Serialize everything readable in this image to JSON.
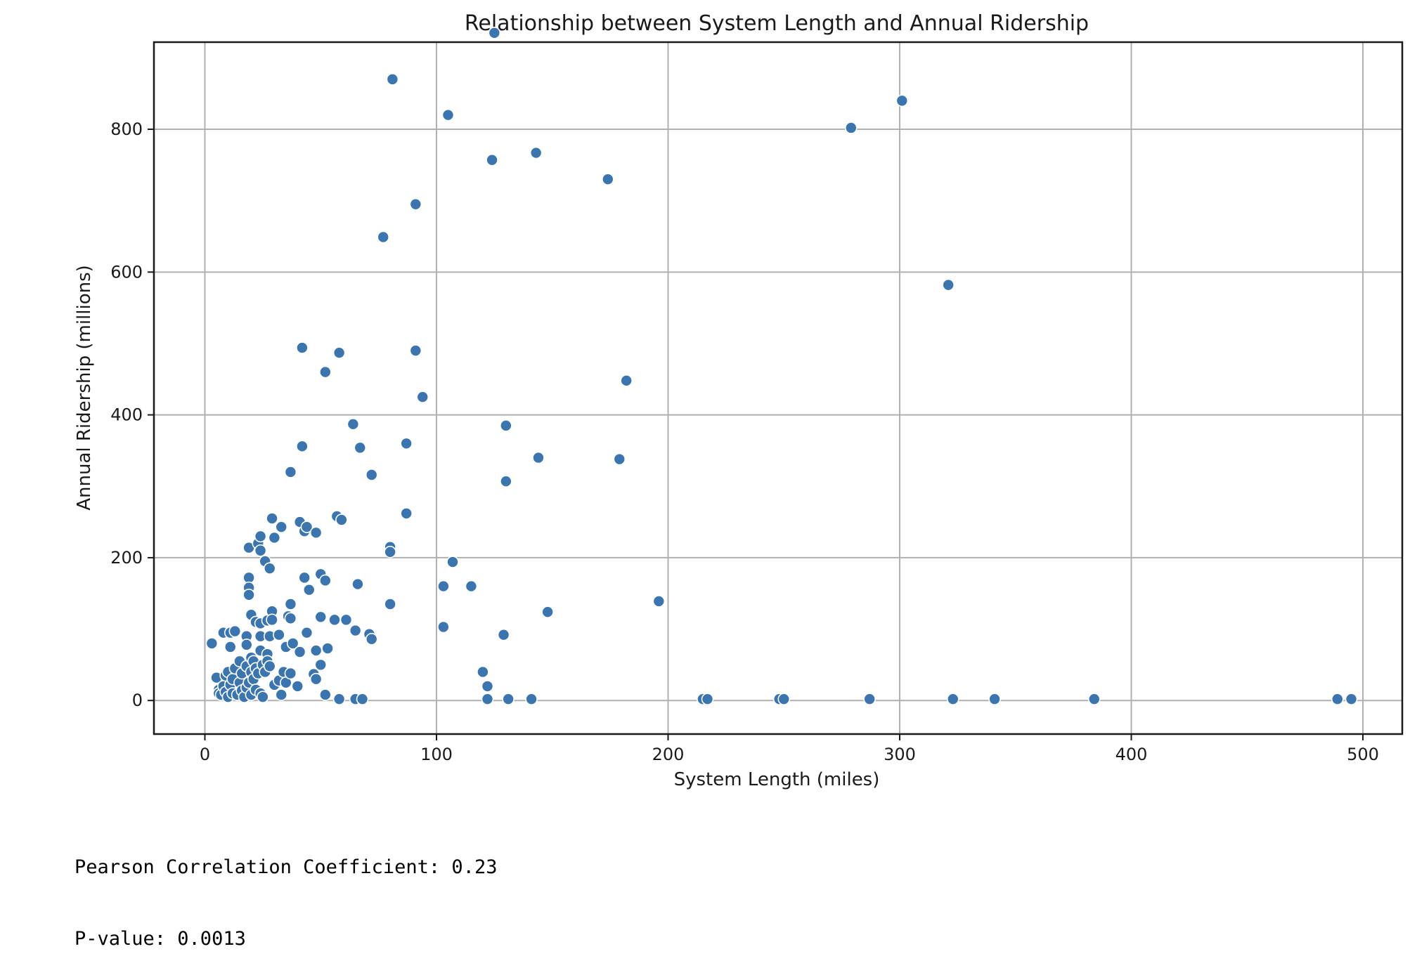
{
  "colors": {
    "point": "#3a75b0",
    "grid": "#b0b0b0",
    "axis": "#1a1a1a"
  },
  "chart_data": {
    "type": "scatter",
    "title": "Relationship between System Length and Annual Ridership",
    "xlabel": "System Length (miles)",
    "ylabel": "Annual Ridership (millions)",
    "xlim": [
      -22,
      517
    ],
    "ylim": [
      -47,
      922
    ],
    "xticks": [
      0,
      100,
      200,
      300,
      400,
      500
    ],
    "yticks": [
      0,
      200,
      400,
      600,
      800
    ],
    "grid": true,
    "legend": "none",
    "points": [
      [
        125,
        935
      ],
      [
        81,
        870
      ],
      [
        105,
        820
      ],
      [
        301,
        840
      ],
      [
        279,
        802
      ],
      [
        143,
        767
      ],
      [
        124,
        757
      ],
      [
        174,
        730
      ],
      [
        91,
        695
      ],
      [
        77,
        649
      ],
      [
        321,
        582
      ],
      [
        42,
        494
      ],
      [
        58,
        487
      ],
      [
        91,
        490
      ],
      [
        52,
        460
      ],
      [
        94,
        425
      ],
      [
        182,
        448
      ],
      [
        64,
        387
      ],
      [
        130,
        385
      ],
      [
        42,
        356
      ],
      [
        67,
        354
      ],
      [
        87,
        360
      ],
      [
        144,
        340
      ],
      [
        179,
        338
      ],
      [
        37,
        320
      ],
      [
        72,
        316
      ],
      [
        130,
        307
      ],
      [
        29,
        255
      ],
      [
        33,
        243
      ],
      [
        41,
        250
      ],
      [
        43,
        237
      ],
      [
        44,
        243
      ],
      [
        48,
        235
      ],
      [
        57,
        258
      ],
      [
        59,
        253
      ],
      [
        87,
        262
      ],
      [
        19,
        214
      ],
      [
        23,
        220
      ],
      [
        24,
        230
      ],
      [
        24,
        210
      ],
      [
        26,
        195
      ],
      [
        28,
        185
      ],
      [
        30,
        228
      ],
      [
        80,
        215
      ],
      [
        80,
        208
      ],
      [
        19,
        172
      ],
      [
        19,
        158
      ],
      [
        19,
        148
      ],
      [
        43,
        172
      ],
      [
        45,
        155
      ],
      [
        50,
        177
      ],
      [
        52,
        168
      ],
      [
        66,
        163
      ],
      [
        103,
        160
      ],
      [
        107,
        194
      ],
      [
        115,
        160
      ],
      [
        20,
        120
      ],
      [
        22,
        110
      ],
      [
        24,
        108
      ],
      [
        27,
        112
      ],
      [
        29,
        125
      ],
      [
        29,
        113
      ],
      [
        37,
        135
      ],
      [
        36,
        118
      ],
      [
        37,
        115
      ],
      [
        50,
        117
      ],
      [
        56,
        113
      ],
      [
        61,
        113
      ],
      [
        80,
        135
      ],
      [
        103,
        103
      ],
      [
        148,
        124
      ],
      [
        196,
        139
      ],
      [
        3,
        80
      ],
      [
        8,
        95
      ],
      [
        11,
        95
      ],
      [
        13,
        97
      ],
      [
        18,
        90
      ],
      [
        18,
        78
      ],
      [
        11,
        75
      ],
      [
        24,
        90
      ],
      [
        28,
        90
      ],
      [
        32,
        92
      ],
      [
        35,
        75
      ],
      [
        38,
        80
      ],
      [
        41,
        68
      ],
      [
        44,
        95
      ],
      [
        48,
        70
      ],
      [
        53,
        73
      ],
      [
        65,
        98
      ],
      [
        71,
        93
      ],
      [
        72,
        86
      ],
      [
        129,
        92
      ],
      [
        5,
        32
      ],
      [
        6,
        15
      ],
      [
        6,
        10
      ],
      [
        7,
        8
      ],
      [
        8,
        20
      ],
      [
        9,
        35
      ],
      [
        9,
        12
      ],
      [
        10,
        40
      ],
      [
        10,
        5
      ],
      [
        11,
        22
      ],
      [
        12,
        30
      ],
      [
        12,
        10
      ],
      [
        13,
        45
      ],
      [
        14,
        8
      ],
      [
        15,
        55
      ],
      [
        15,
        25
      ],
      [
        16,
        38
      ],
      [
        16,
        14
      ],
      [
        17,
        5
      ],
      [
        18,
        48
      ],
      [
        18,
        18
      ],
      [
        19,
        25
      ],
      [
        20,
        60
      ],
      [
        20,
        40
      ],
      [
        20,
        8
      ],
      [
        21,
        55
      ],
      [
        21,
        30
      ],
      [
        22,
        45
      ],
      [
        22,
        15
      ],
      [
        23,
        38
      ],
      [
        24,
        70
      ],
      [
        24,
        10
      ],
      [
        25,
        50
      ],
      [
        25,
        5
      ],
      [
        26,
        40
      ],
      [
        27,
        65
      ],
      [
        27,
        55
      ],
      [
        28,
        48
      ],
      [
        30,
        22
      ],
      [
        32,
        28
      ],
      [
        33,
        8
      ],
      [
        34,
        40
      ],
      [
        35,
        25
      ],
      [
        37,
        38
      ],
      [
        40,
        20
      ],
      [
        47,
        37
      ],
      [
        48,
        30
      ],
      [
        50,
        50
      ],
      [
        52,
        8
      ],
      [
        58,
        2
      ],
      [
        65,
        2
      ],
      [
        68,
        2
      ],
      [
        120,
        40
      ],
      [
        122,
        20
      ],
      [
        122,
        2
      ],
      [
        131,
        2
      ],
      [
        141,
        2
      ],
      [
        215,
        2
      ],
      [
        217,
        2
      ],
      [
        248,
        2
      ],
      [
        250,
        2
      ],
      [
        287,
        2
      ],
      [
        323,
        2
      ],
      [
        341,
        2
      ],
      [
        384,
        2
      ],
      [
        489,
        2
      ],
      [
        495,
        2
      ]
    ]
  },
  "stats": {
    "pearson": "Pearson Correlation Coefficient: 0.23",
    "pvalue": "P-value: 0.0013"
  }
}
